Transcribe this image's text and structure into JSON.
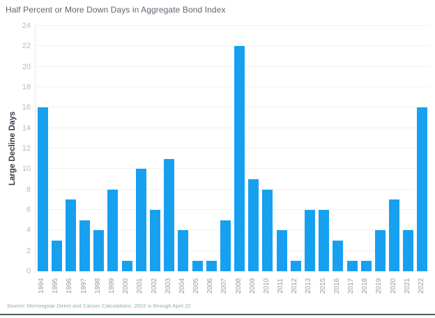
{
  "title": "Half Percent or More Down Days in Aggregate Bond Index",
  "source": "Source: Morningstar Direct and Carson Calculations. 2022 is through April 22",
  "colors": {
    "bar": "#18a0f0",
    "grid": "#f1f1f1",
    "axis_line": "#e8e8e8",
    "title_text": "#5c6670",
    "y_tick_text": "#b4bac1",
    "x_tick_text": "#949aa1",
    "y_axis_title_text": "#333b44",
    "source_text": "#9aa5a8",
    "accent_rule": "#466351"
  },
  "chart_data": {
    "type": "bar",
    "title": "Half Percent or More Down Days in Aggregate Bond Index",
    "xlabel": "",
    "ylabel": "Large Decline Days",
    "categories": [
      "1994",
      "1995",
      "1996",
      "1997",
      "1998",
      "1999",
      "2000",
      "2001",
      "2002",
      "2003",
      "2004",
      "2005",
      "2006",
      "2007",
      "2008",
      "2009",
      "2010",
      "2011",
      "2012",
      "2013",
      "2015",
      "2016",
      "2017",
      "2018",
      "2019",
      "2020",
      "2021",
      "2022"
    ],
    "values": [
      16,
      3,
      7,
      5,
      4,
      8,
      1,
      10,
      6,
      11,
      4,
      1,
      1,
      5,
      22,
      9,
      8,
      4,
      1,
      6,
      6,
      3,
      1,
      1,
      4,
      7,
      4,
      16
    ],
    "ylim": [
      0,
      24
    ],
    "yticks": [
      0,
      2,
      4,
      6,
      8,
      10,
      12,
      14,
      16,
      18,
      20,
      22,
      24
    ],
    "grid": "horizontal-light",
    "legend": "none",
    "note": "2014 not shown on axis"
  }
}
